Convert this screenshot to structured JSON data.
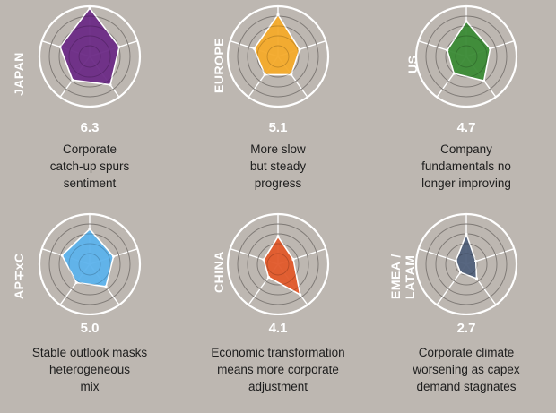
{
  "chart_data": [
    {
      "type": "radar",
      "region": "JAPAN",
      "score": "6.3",
      "description": "Corporate catch-up spurs sentiment",
      "description_lines": [
        "Corporate",
        "catch-up spurs",
        "sentiment"
      ],
      "color": "#6b2a86",
      "values": [
        0.96,
        0.62,
        0.7,
        0.58,
        0.62
      ]
    },
    {
      "type": "radar",
      "region": "EUROPE",
      "score": "5.1",
      "description": "More slow but steady progress",
      "description_lines": [
        "More slow",
        "but steady",
        "progress"
      ],
      "color": "#f4aa2a",
      "values": [
        0.83,
        0.45,
        0.45,
        0.45,
        0.5
      ]
    },
    {
      "type": "radar",
      "region": "US",
      "score": "4.7",
      "description": "Company fundamentals no longer improving",
      "description_lines": [
        "Company",
        "fundamentals no",
        "longer improving"
      ],
      "color": "#3a8a35",
      "values": [
        0.7,
        0.5,
        0.6,
        0.42,
        0.4
      ]
    },
    {
      "type": "radar",
      "region": "AP∓xC",
      "score": "5.0",
      "description": "Stable outlook masks heterogeneous mix",
      "description_lines": [
        "Stable outlook masks",
        "heterogeneous",
        "mix"
      ],
      "color": "#5cb2ec",
      "values": [
        0.7,
        0.5,
        0.55,
        0.45,
        0.58
      ]
    },
    {
      "type": "radar",
      "region": "CHINA",
      "score": "4.1",
      "description": "Economic transformation means more corporate adjustment",
      "description_lines": [
        "Economic transformation",
        "means more corporate",
        "adjustment"
      ],
      "color": "#e2582a",
      "values": [
        0.55,
        0.32,
        0.75,
        0.32,
        0.3
      ]
    },
    {
      "type": "radar",
      "region": "EMEA / LATAM",
      "score": "2.7",
      "description": "Corporate climate worsening as capex demand stagnates",
      "description_lines": [
        "Corporate climate",
        "worsening as capex",
        "demand stagnates"
      ],
      "color": "#4f5f7a",
      "values": [
        0.6,
        0.2,
        0.35,
        0.2,
        0.22
      ]
    }
  ],
  "label_lines": [
    [
      "JAPAN"
    ],
    [
      "EUROPE"
    ],
    [
      "US"
    ],
    [
      "AP∓xC"
    ],
    [
      "CHINA"
    ],
    [
      "EMEA /",
      "LATAM"
    ]
  ]
}
